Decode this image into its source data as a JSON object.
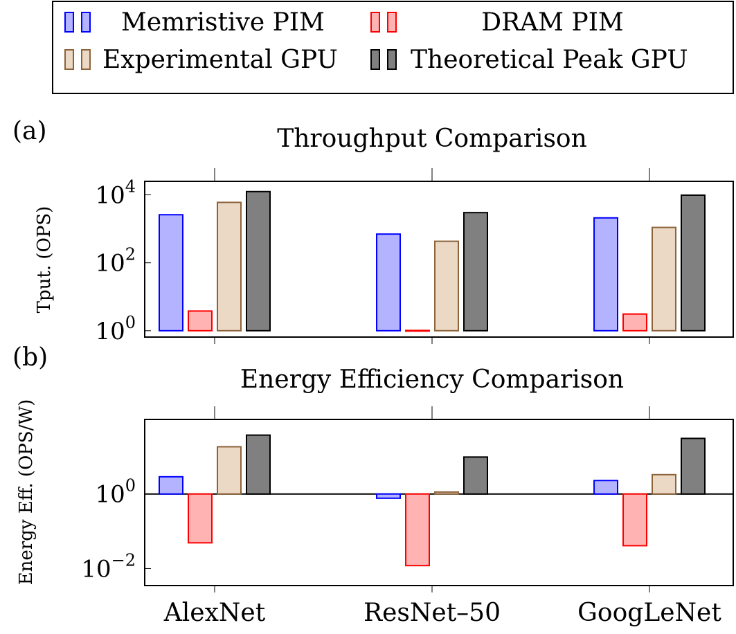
{
  "legend": {
    "items": [
      {
        "label": "Memristive PIM",
        "fill": "#b3b3ff",
        "stroke": "#0000ff"
      },
      {
        "label": "DRAM PIM",
        "fill": "#ffb3b3",
        "stroke": "#ff0000"
      },
      {
        "label": "Experimental GPU",
        "fill": "#ebd9c6",
        "stroke": "#8c6239"
      },
      {
        "label": "Theoretical Peak GPU",
        "fill": "#808080",
        "stroke": "#000000"
      }
    ]
  },
  "chart_data": [
    {
      "panel": "(a)",
      "type": "bar",
      "title": "Throughput Comparison",
      "ylabel": "Tput. (OPS)",
      "yscale": "log",
      "ylim": [
        0.65,
        25000
      ],
      "yticks": [
        {
          "value": 1,
          "exp": "0"
        },
        {
          "value": 100,
          "exp": "2"
        },
        {
          "value": 10000,
          "exp": "4"
        }
      ],
      "categories": [
        "AlexNet",
        "ResNet–50",
        "GoogLeNet"
      ],
      "series": [
        {
          "name": "Memristive PIM",
          "values": [
            2600,
            700,
            2100
          ]
        },
        {
          "name": "DRAM PIM",
          "values": [
            3.8,
            1.02,
            3.1
          ]
        },
        {
          "name": "Experimental GPU",
          "values": [
            6000,
            430,
            1100
          ]
        },
        {
          "name": "Theoretical Peak GPU",
          "values": [
            12500,
            3000,
            9800
          ]
        }
      ]
    },
    {
      "panel": "(b)",
      "type": "bar",
      "title": "Energy Efficiency Comparison",
      "ylabel": "Energy Eff. (OPS/W)",
      "yscale": "log",
      "ylim": [
        0.0035,
        100
      ],
      "baseline": 1,
      "yticks": [
        {
          "value": 0.01,
          "exp": "−2"
        },
        {
          "value": 1,
          "exp": "0"
        }
      ],
      "categories": [
        "AlexNet",
        "ResNet–50",
        "GoogLeNet"
      ],
      "series": [
        {
          "name": "Memristive PIM",
          "values": [
            2.9,
            0.77,
            2.3
          ]
        },
        {
          "name": "DRAM PIM",
          "values": [
            0.049,
            0.012,
            0.041
          ]
        },
        {
          "name": "Experimental GPU",
          "values": [
            18.5,
            1.13,
            3.3
          ]
        },
        {
          "name": "Theoretical Peak GPU",
          "values": [
            38,
            9.8,
            31
          ]
        }
      ]
    }
  ]
}
